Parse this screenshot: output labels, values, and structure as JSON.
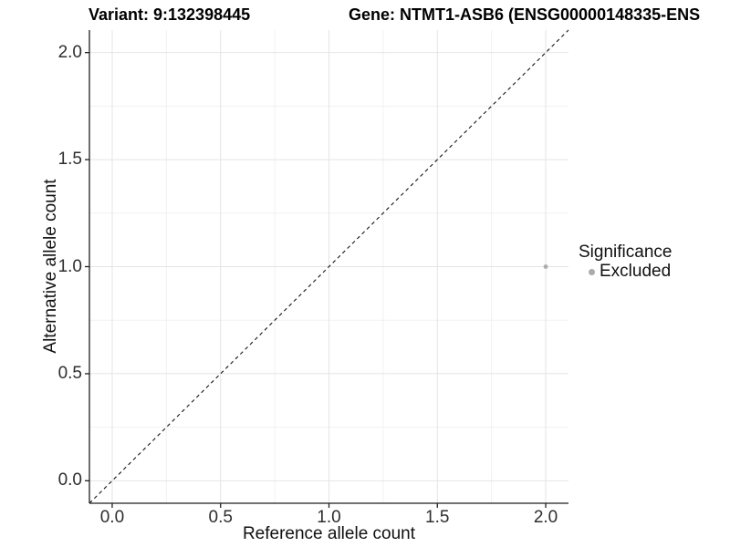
{
  "chart_data": {
    "type": "scatter",
    "title_left": "Variant: 9:132398445",
    "title_right": "Gene: NTMT1-ASB6 (ENSG00000148335-ENS",
    "xlabel": "Reference allele count",
    "ylabel": "Alternative allele count",
    "xlim": [
      -0.105,
      2.105
    ],
    "ylim": [
      -0.105,
      2.105
    ],
    "x_tick_values": [
      0,
      0.5,
      1,
      1.5,
      2
    ],
    "x_tick_labels": [
      "0.0",
      "0.5",
      "1.0",
      "1.5",
      "2.0"
    ],
    "y_tick_values": [
      0,
      0.5,
      1,
      1.5,
      2
    ],
    "y_tick_labels": [
      "0.0",
      "0.5",
      "1.0",
      "1.5",
      "2.0"
    ],
    "x_minor_ticks": [
      0.25,
      0.75,
      1.25,
      1.75
    ],
    "y_minor_ticks": [
      0.25,
      0.75,
      1.25,
      1.75
    ],
    "grid": "major+minor",
    "legend_position": "right",
    "reference_line": {
      "style": "dashed",
      "x1": -0.105,
      "y1": -0.105,
      "x2": 2.105,
      "y2": 2.105,
      "color": "#141414"
    },
    "series": [
      {
        "name": "Excluded",
        "color": "#acacac",
        "points": [
          {
            "x": 2.0,
            "y": 1.0
          }
        ]
      }
    ],
    "legend": {
      "title": "Significance",
      "items": [
        {
          "label": "Excluded",
          "color": "#ababab"
        }
      ]
    },
    "colors": {
      "grid_major": "#e4e4e4",
      "grid_minor": "#f1f1f1",
      "axis_line": "#1f1f1f",
      "point": "#acacac"
    }
  }
}
